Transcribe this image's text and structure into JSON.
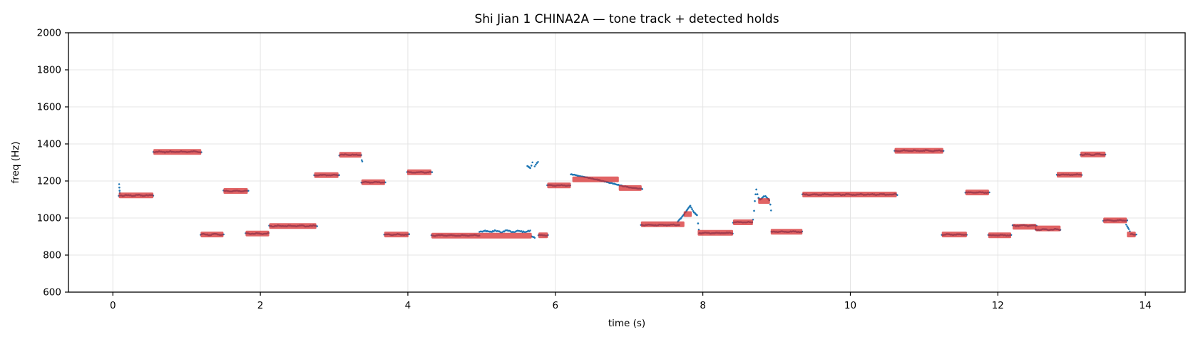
{
  "chart_data": {
    "type": "scatter",
    "title": "Shi Jian 1 CHINA2A — tone track + detected holds",
    "xlabel": "time (s)",
    "ylabel": "freq (Hz)",
    "xlim": [
      -0.602,
      14.54
    ],
    "ylim": [
      600,
      2000
    ],
    "xticks": [
      0,
      2,
      4,
      6,
      8,
      10,
      12,
      14
    ],
    "yticks": [
      600,
      800,
      1000,
      1200,
      1400,
      1600,
      1800,
      2000
    ],
    "grid": true,
    "legend_position": "none",
    "colors": {
      "track": "#1f77b4",
      "hold": "#d62728",
      "hold_opacity": 0.72,
      "grid": "#e4e4e4",
      "spine": "#000000"
    },
    "series": [
      {
        "name": "tone track",
        "style": "scatter-dots",
        "color": "#1f77b4"
      },
      {
        "name": "detected holds",
        "style": "horizontal-bars",
        "color": "#d62728"
      }
    ],
    "holds": [
      [
        0.08,
        0.55,
        1122
      ],
      [
        0.55,
        1.2,
        1357
      ],
      [
        1.19,
        1.5,
        911
      ],
      [
        1.5,
        1.83,
        1146
      ],
      [
        1.8,
        2.12,
        916
      ],
      [
        2.12,
        2.76,
        957
      ],
      [
        2.73,
        3.06,
        1232
      ],
      [
        3.07,
        3.37,
        1341
      ],
      [
        3.37,
        3.69,
        1193
      ],
      [
        3.68,
        4.01,
        911
      ],
      [
        3.99,
        4.32,
        1247
      ],
      [
        4.32,
        5.68,
        905
      ],
      [
        5.77,
        5.9,
        907
      ],
      [
        5.89,
        6.21,
        1176
      ],
      [
        6.23,
        6.86,
        1209
      ],
      [
        6.86,
        7.17,
        1162
      ],
      [
        7.16,
        7.75,
        966
      ],
      [
        7.74,
        7.85,
        1021
      ],
      [
        7.93,
        8.41,
        920
      ],
      [
        8.41,
        8.68,
        977
      ],
      [
        8.75,
        8.91,
        1092
      ],
      [
        8.92,
        9.35,
        926
      ],
      [
        9.35,
        10.63,
        1127
      ],
      [
        10.6,
        11.26,
        1363
      ],
      [
        11.24,
        11.58,
        911
      ],
      [
        11.56,
        11.88,
        1138
      ],
      [
        11.87,
        12.18,
        907
      ],
      [
        12.2,
        12.52,
        953
      ],
      [
        12.51,
        12.85,
        944
      ],
      [
        12.8,
        13.14,
        1234
      ],
      [
        13.12,
        13.46,
        1343
      ],
      [
        13.43,
        13.75,
        987
      ],
      [
        13.75,
        13.87,
        911
      ]
    ],
    "track_runs": [
      {
        "t0": 0.08,
        "t1": 0.56,
        "hz": 1122,
        "w": 4
      },
      {
        "t0": 0.55,
        "t1": 1.21,
        "hz": 1357,
        "w": 4
      },
      {
        "t0": 1.19,
        "t1": 1.51,
        "hz": 911,
        "w": 4
      },
      {
        "t0": 1.5,
        "t1": 1.84,
        "hz": 1146,
        "w": 3
      },
      {
        "t0": 1.8,
        "t1": 2.12,
        "hz": 916,
        "w": 3
      },
      {
        "t0": 2.12,
        "t1": 2.77,
        "hz": 957,
        "w": 4
      },
      {
        "t0": 2.73,
        "t1": 3.07,
        "hz": 1232,
        "w": 3
      },
      {
        "t0": 3.07,
        "t1": 3.38,
        "hz": 1341,
        "w": 4
      },
      {
        "t0": 3.37,
        "t1": 3.7,
        "hz": 1193,
        "w": 3
      },
      {
        "t0": 3.68,
        "t1": 4.02,
        "hz": 911,
        "w": 3
      },
      {
        "t0": 3.99,
        "t1": 4.33,
        "hz": 1247,
        "w": 3
      },
      {
        "t0": 4.32,
        "t1": 4.97,
        "hz": 906,
        "w": 3
      },
      {
        "t0": 4.97,
        "t1": 5.67,
        "hz": 928,
        "w": 6
      },
      {
        "t0": 5.77,
        "t1": 5.91,
        "hz": 907,
        "w": 3
      },
      {
        "t0": 5.89,
        "t1": 6.21,
        "hz": 1176,
        "w": 3
      },
      {
        "t0": 7.16,
        "t1": 7.68,
        "hz": 963,
        "w": 4
      },
      {
        "t0": 7.95,
        "t1": 8.41,
        "hz": 919,
        "w": 3
      },
      {
        "t0": 8.41,
        "t1": 8.68,
        "hz": 977,
        "w": 3
      },
      {
        "t0": 8.93,
        "t1": 9.35,
        "hz": 926,
        "w": 3
      },
      {
        "t0": 9.35,
        "t1": 10.64,
        "hz": 1127,
        "w": 4
      },
      {
        "t0": 10.6,
        "t1": 11.27,
        "hz": 1363,
        "w": 4
      },
      {
        "t0": 11.24,
        "t1": 11.59,
        "hz": 911,
        "w": 3
      },
      {
        "t0": 11.56,
        "t1": 11.89,
        "hz": 1138,
        "w": 3
      },
      {
        "t0": 11.87,
        "t1": 12.19,
        "hz": 907,
        "w": 3
      },
      {
        "t0": 12.2,
        "t1": 12.53,
        "hz": 959,
        "w": 4
      },
      {
        "t0": 12.51,
        "t1": 12.86,
        "hz": 938,
        "w": 4
      },
      {
        "t0": 12.8,
        "t1": 13.15,
        "hz": 1234,
        "w": 3
      },
      {
        "t0": 13.12,
        "t1": 13.47,
        "hz": 1343,
        "w": 4
      },
      {
        "t0": 13.43,
        "t1": 13.76,
        "hz": 987,
        "w": 3
      },
      {
        "t0": 13.8,
        "t1": 13.88,
        "hz": 912,
        "w": 3
      }
    ],
    "track_paths": [
      [
        [
          0.085,
          1182
        ],
        [
          0.088,
          1166
        ],
        [
          0.091,
          1148
        ],
        [
          0.094,
          1136
        ]
      ],
      [
        [
          3.375,
          1312
        ],
        [
          3.382,
          1305
        ]
      ],
      [
        [
          5.68,
          901
        ],
        [
          5.7,
          897
        ],
        [
          5.72,
          894
        ]
      ],
      [
        [
          5.62,
          1281
        ],
        [
          5.64,
          1276
        ],
        [
          5.66,
          1270
        ],
        [
          5.675,
          1284
        ],
        [
          5.69,
          1300
        ]
      ],
      [
        [
          5.72,
          1278
        ],
        [
          5.735,
          1288
        ],
        [
          5.75,
          1297
        ],
        [
          5.765,
          1304
        ]
      ],
      [
        [
          6.21,
          1237
        ],
        [
          6.3,
          1229
        ],
        [
          6.4,
          1221
        ],
        [
          6.5,
          1213
        ],
        [
          6.6,
          1204
        ],
        [
          6.7,
          1194
        ],
        [
          6.8,
          1184
        ],
        [
          6.9,
          1174
        ],
        [
          7.0,
          1166
        ],
        [
          7.1,
          1160
        ],
        [
          7.18,
          1157
        ]
      ],
      [
        [
          7.66,
          980
        ],
        [
          7.7,
          998
        ],
        [
          7.74,
          1018
        ],
        [
          7.78,
          1040
        ],
        [
          7.81,
          1058
        ],
        [
          7.83,
          1067
        ],
        [
          7.855,
          1047
        ],
        [
          7.88,
          1031
        ],
        [
          7.9,
          1023
        ],
        [
          7.92,
          1015
        ],
        [
          7.935,
          972
        ],
        [
          7.945,
          938
        ]
      ],
      [
        [
          8.68,
          992
        ],
        [
          8.695,
          1040
        ],
        [
          8.705,
          1092
        ],
        [
          8.715,
          1128
        ],
        [
          8.725,
          1154
        ],
        [
          8.74,
          1128
        ],
        [
          8.755,
          1108
        ],
        [
          8.775,
          1100
        ],
        [
          8.8,
          1106
        ],
        [
          8.825,
          1116
        ],
        [
          8.85,
          1118
        ],
        [
          8.875,
          1107
        ],
        [
          8.9,
          1096
        ],
        [
          8.915,
          1072
        ],
        [
          8.925,
          1040
        ]
      ],
      [
        [
          13.74,
          964
        ],
        [
          13.765,
          947
        ],
        [
          13.79,
          930
        ]
      ]
    ]
  }
}
